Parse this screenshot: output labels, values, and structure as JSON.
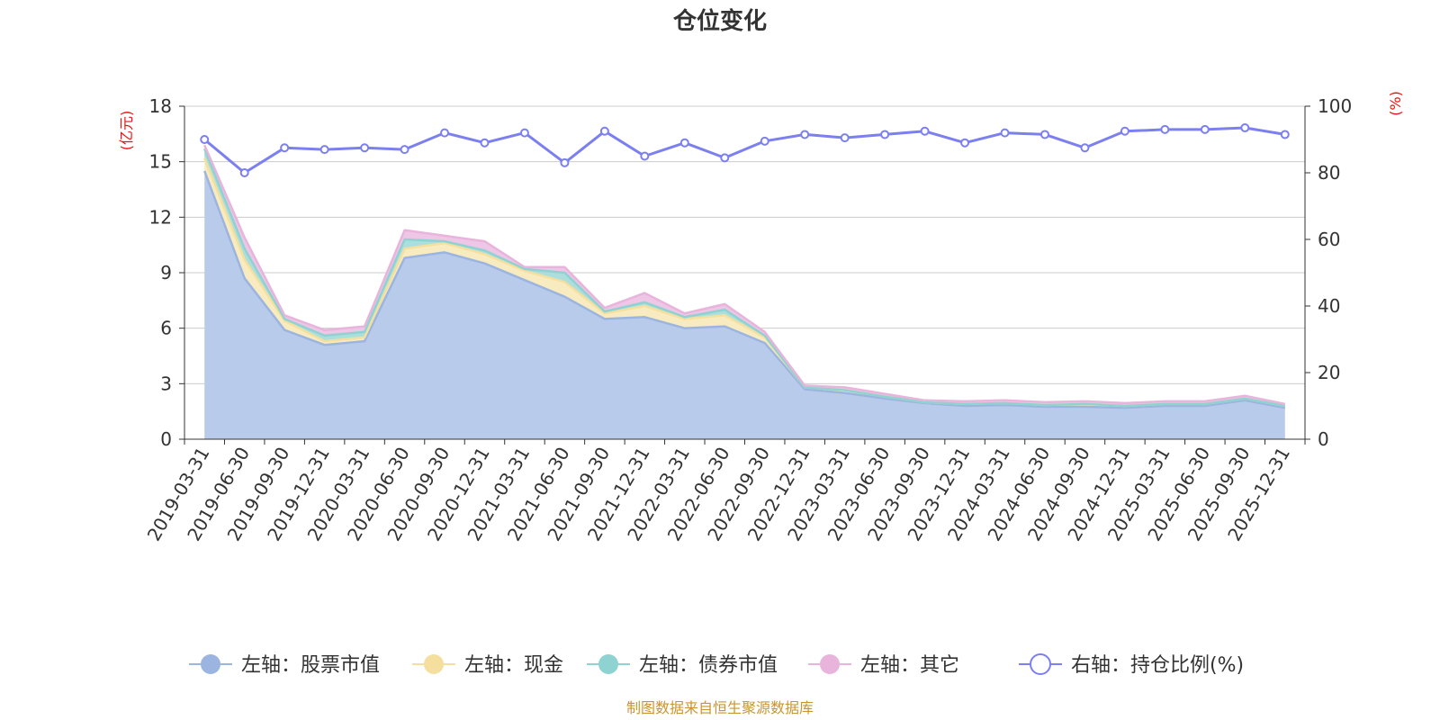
{
  "chart_data": {
    "type": "area",
    "title": "仓位变化",
    "left_unit": "(亿元)",
    "right_unit": "(%)",
    "source": "制图数据来自恒生聚源数据库",
    "y_left": {
      "min": 0,
      "max": 18,
      "ticks": [
        "0",
        "3",
        "6",
        "9",
        "12",
        "15",
        "18"
      ]
    },
    "y_right": {
      "min": 0,
      "max": 100,
      "ticks": [
        "0",
        "20",
        "40",
        "60",
        "80",
        "100"
      ]
    },
    "categories": [
      "2019-03-31",
      "2019-06-30",
      "2019-09-30",
      "2019-12-31",
      "2020-03-31",
      "2020-06-30",
      "2020-09-30",
      "2020-12-31",
      "2021-03-31",
      "2021-06-30",
      "2021-09-30",
      "2021-12-31",
      "2022-03-31",
      "2022-06-30",
      "2022-09-30",
      "2022-12-31",
      "2023-03-31",
      "2023-06-30",
      "2023-09-30",
      "2023-12-31",
      "2024-03-31",
      "2024-06-30",
      "2024-09-30",
      "2024-12-31",
      "2025-03-31",
      "2025-06-30",
      "2025-09-30",
      "2025-12-31"
    ],
    "series": [
      {
        "name": "左轴：股票市值",
        "axis": "left",
        "stack": true,
        "color": "#9bb5e0",
        "fill": "#b9cbea",
        "values": [
          14.5,
          8.7,
          5.9,
          5.1,
          5.3,
          9.8,
          10.1,
          9.5,
          8.6,
          7.7,
          6.5,
          6.6,
          6.0,
          6.1,
          5.2,
          2.7,
          2.5,
          2.2,
          1.95,
          1.8,
          1.85,
          1.75,
          1.75,
          1.7,
          1.8,
          1.8,
          2.1,
          1.7
        ]
      },
      {
        "name": "左轴：现金",
        "axis": "left",
        "stack": true,
        "color": "#f5df9e",
        "fill": "#f9ebc0",
        "values": [
          0.7,
          1.0,
          0.5,
          0.2,
          0.2,
          0.5,
          0.5,
          0.5,
          0.5,
          0.8,
          0.3,
          0.6,
          0.5,
          0.6,
          0.3,
          0.1,
          0.15,
          0.1,
          0.05,
          0.1,
          0.1,
          0.1,
          0.15,
          0.1,
          0.1,
          0.1,
          0.1,
          0.1
        ]
      },
      {
        "name": "左轴：债券市值",
        "axis": "left",
        "stack": true,
        "color": "#8ed3d2",
        "fill": "#acdedd",
        "values": [
          0.5,
          0.6,
          0.1,
          0.3,
          0.3,
          0.5,
          0.1,
          0.2,
          0.1,
          0.5,
          0.1,
          0.2,
          0.1,
          0.3,
          0.1,
          0.0,
          0.0,
          0.0,
          0.0,
          0.0,
          0.0,
          0.0,
          0.0,
          0.0,
          0.0,
          0.0,
          0.0,
          0.0
        ]
      },
      {
        "name": "左轴：其它",
        "axis": "left",
        "stack": true,
        "color": "#e8b4dc",
        "fill": "#eec6e6",
        "values": [
          0.2,
          0.6,
          0.2,
          0.3,
          0.3,
          0.5,
          0.3,
          0.5,
          0.1,
          0.3,
          0.2,
          0.5,
          0.2,
          0.3,
          0.2,
          0.1,
          0.15,
          0.15,
          0.1,
          0.15,
          0.15,
          0.15,
          0.15,
          0.15,
          0.15,
          0.15,
          0.15,
          0.1
        ]
      },
      {
        "name": "右轴：持仓比例(%)",
        "axis": "right",
        "stack": false,
        "color": "#7b7ff0",
        "values": [
          90,
          80,
          87.5,
          87,
          87.5,
          87,
          92,
          89,
          92,
          83,
          92.5,
          85,
          89,
          84.5,
          89.5,
          91.5,
          90.5,
          91.5,
          92.5,
          89,
          92,
          91.5,
          87.5,
          92.5,
          93,
          93,
          93.5,
          91.5
        ]
      }
    ],
    "legend_position": "bottom",
    "grid": true
  }
}
